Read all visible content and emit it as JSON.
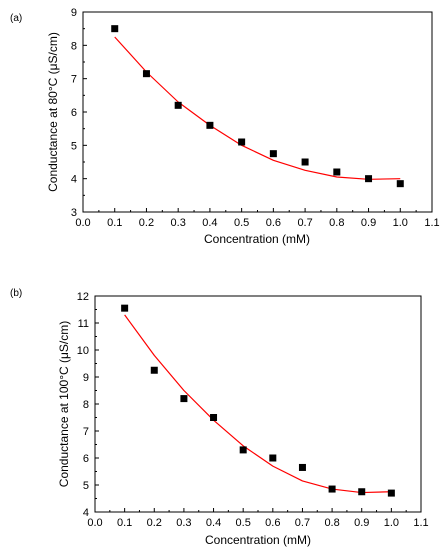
{
  "chart_data": [
    {
      "type": "scatter",
      "panel_label": "(a)",
      "xlabel": "Concentration (mM)",
      "ylabel": "Conductance at 80°C (μS/cm)",
      "xlim": [
        0.0,
        1.1
      ],
      "ylim": [
        3,
        9
      ],
      "x_ticks": [
        "0.0",
        "0.1",
        "0.2",
        "0.3",
        "0.4",
        "0.5",
        "0.6",
        "0.7",
        "0.8",
        "0.9",
        "1.0",
        "1.1"
      ],
      "y_ticks": [
        "3",
        "4",
        "5",
        "6",
        "7",
        "8",
        "9"
      ],
      "grid": false,
      "legend": "none",
      "series": [
        {
          "marker": "square",
          "color": "#000000",
          "x": [
            0.1,
            0.2,
            0.3,
            0.4,
            0.5,
            0.6,
            0.7,
            0.8,
            0.9,
            1.0
          ],
          "y": [
            8.5,
            7.15,
            6.2,
            5.6,
            5.1,
            4.75,
            4.5,
            4.2,
            4.0,
            3.85
          ]
        }
      ],
      "fit": {
        "color": "#ff0000",
        "x": [
          0.1,
          0.2,
          0.3,
          0.4,
          0.5,
          0.6,
          0.7,
          0.8,
          0.9,
          1.0
        ],
        "y": [
          8.25,
          7.2,
          6.3,
          5.6,
          5.0,
          4.55,
          4.25,
          4.05,
          3.98,
          4.0
        ]
      }
    },
    {
      "type": "scatter",
      "panel_label": "(b)",
      "xlabel": "Concentration (mM)",
      "ylabel": "Conductance at 100°C (μS/cm)",
      "xlim": [
        0.0,
        1.1
      ],
      "ylim": [
        4,
        12
      ],
      "x_ticks": [
        "0.0",
        "0.1",
        "0.2",
        "0.3",
        "0.4",
        "0.5",
        "0.6",
        "0.7",
        "0.8",
        "0.9",
        "1.0",
        "1.1"
      ],
      "y_ticks": [
        "4",
        "5",
        "6",
        "7",
        "8",
        "9",
        "10",
        "11",
        "12"
      ],
      "grid": false,
      "legend": "none",
      "series": [
        {
          "marker": "square",
          "color": "#000000",
          "x": [
            0.1,
            0.2,
            0.3,
            0.4,
            0.5,
            0.6,
            0.7,
            0.8,
            0.9,
            1.0
          ],
          "y": [
            11.55,
            9.25,
            8.2,
            7.5,
            6.3,
            6.0,
            5.65,
            4.85,
            4.75,
            4.7
          ]
        }
      ],
      "fit": {
        "color": "#ff0000",
        "x": [
          0.1,
          0.2,
          0.3,
          0.4,
          0.5,
          0.6,
          0.7,
          0.8,
          0.9,
          1.0
        ],
        "y": [
          11.3,
          9.8,
          8.5,
          7.4,
          6.45,
          5.7,
          5.15,
          4.85,
          4.72,
          4.75
        ]
      }
    }
  ]
}
